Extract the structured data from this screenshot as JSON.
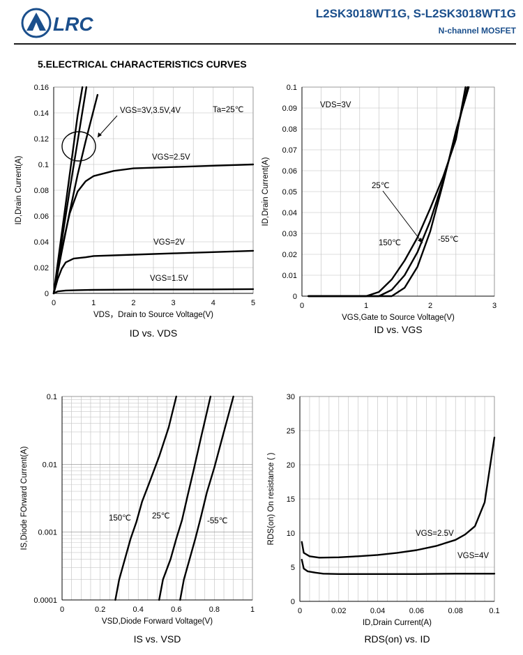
{
  "header": {
    "logo_text": "LRC",
    "title": "L2SK3018WT1G, S-L2SK3018WT1G",
    "subtitle": "N-channel MOSFET",
    "section": "5.ELECTRICAL CHARACTERISTICS CURVES"
  },
  "chart_data": [
    {
      "type": "line",
      "title": "ID vs. VDS",
      "xlabel": "VDS，Drain to Source Voltage(V)",
      "ylabel": "ID,Drain Current(A)",
      "xlim": [
        0,
        5
      ],
      "ylim": [
        0,
        0.16
      ],
      "xticks": [
        "0",
        "1",
        "2",
        "3",
        "4",
        "5"
      ],
      "yticks": [
        "0",
        "0.02",
        "0.04",
        "0.06",
        "0.08",
        "0.1",
        "0.12",
        "0.14",
        "0.16"
      ],
      "grid": true,
      "annotations": [
        "VGS=3V,3.5V,4V",
        "Ta=25℃",
        "VGS=2.5V",
        "VGS=2V",
        "VGS=1.5V"
      ],
      "series": [
        {
          "name": "VGS=4V",
          "x": [
            0,
            0.2,
            0.4,
            0.6,
            0.72
          ],
          "y": [
            0,
            0.046,
            0.092,
            0.138,
            0.16
          ]
        },
        {
          "name": "VGS=3.5V",
          "x": [
            0,
            0.2,
            0.4,
            0.6,
            0.82
          ],
          "y": [
            0,
            0.04,
            0.08,
            0.118,
            0.16
          ]
        },
        {
          "name": "VGS=3V",
          "x": [
            0,
            0.2,
            0.4,
            0.6,
            0.8,
            1.1
          ],
          "y": [
            0,
            0.032,
            0.063,
            0.092,
            0.118,
            0.154
          ]
        },
        {
          "name": "VGS=2.5V",
          "x": [
            0,
            0.2,
            0.4,
            0.6,
            0.8,
            1.0,
            1.5,
            2.0,
            3.0,
            4.0,
            5.0
          ],
          "y": [
            0,
            0.034,
            0.062,
            0.079,
            0.087,
            0.091,
            0.095,
            0.097,
            0.098,
            0.099,
            0.1
          ]
        },
        {
          "name": "VGS=2V",
          "x": [
            0,
            0.1,
            0.2,
            0.3,
            0.5,
            0.8,
            1.0,
            2.0,
            3.0,
            4.0,
            5.0
          ],
          "y": [
            0,
            0.011,
            0.019,
            0.024,
            0.027,
            0.028,
            0.029,
            0.03,
            0.031,
            0.032,
            0.033
          ]
        },
        {
          "name": "VGS=1.5V",
          "x": [
            0,
            0.1,
            0.3,
            0.6,
            1.0,
            2.0,
            3.0,
            4.0,
            5.0
          ],
          "y": [
            0,
            0.0015,
            0.0022,
            0.0025,
            0.0027,
            0.0029,
            0.003,
            0.0031,
            0.0033
          ]
        }
      ]
    },
    {
      "type": "line",
      "title": "ID vs. VGS",
      "xlabel": "VGS,Gate to Source Voltage(V)",
      "ylabel": "ID,Drain Current(A)",
      "xlim": [
        0,
        3
      ],
      "ylim": [
        0,
        0.1
      ],
      "xticks": [
        "0",
        "1",
        "2",
        "3"
      ],
      "yticks": [
        "0",
        "0.01",
        "0.02",
        "0.03",
        "0.04",
        "0.05",
        "0.06",
        "0.07",
        "0.08",
        "0.09",
        "0.1"
      ],
      "grid": true,
      "annotations": [
        "VDS=3V",
        "25℃",
        "150℃",
        "-55℃"
      ],
      "series": [
        {
          "name": "150℃",
          "x": [
            0.1,
            1.0,
            1.2,
            1.4,
            1.6,
            1.8,
            2.0,
            2.2,
            2.4,
            2.55
          ],
          "y": [
            0,
            0,
            0.002,
            0.008,
            0.017,
            0.028,
            0.042,
            0.057,
            0.075,
            0.1
          ]
        },
        {
          "name": "25℃",
          "x": [
            0.1,
            1.2,
            1.4,
            1.6,
            1.8,
            2.0,
            2.2,
            2.4,
            2.58
          ],
          "y": [
            0,
            0,
            0.003,
            0.01,
            0.021,
            0.036,
            0.055,
            0.077,
            0.1
          ]
        },
        {
          "name": "-55℃",
          "x": [
            0.1,
            1.4,
            1.6,
            1.8,
            2.0,
            2.2,
            2.4,
            2.6
          ],
          "y": [
            0,
            0,
            0.004,
            0.014,
            0.031,
            0.054,
            0.079,
            0.1
          ]
        }
      ]
    },
    {
      "type": "line",
      "title": "IS vs. VSD",
      "xlabel": "VSD,Diode Forward Voltage(V)",
      "ylabel": "IS,Diode FOrward Current(A)",
      "xlim": [
        0,
        1
      ],
      "ylim": [
        0.0001,
        0.1
      ],
      "yscale": "log",
      "xticks": [
        "0",
        "0.2",
        "0.4",
        "0.6",
        "0.8",
        "1"
      ],
      "yticks": [
        "0.0001",
        "0.001",
        "0.01",
        "0.1"
      ],
      "grid": true,
      "annotations": [
        "150℃",
        "25℃",
        "-55℃"
      ],
      "series": [
        {
          "name": "150℃",
          "x": [
            0.28,
            0.3,
            0.33,
            0.36,
            0.39,
            0.42,
            0.46,
            0.51,
            0.56,
            0.6
          ],
          "y": [
            0.0001,
            0.0002,
            0.0004,
            0.0008,
            0.0014,
            0.0028,
            0.0055,
            0.013,
            0.035,
            0.1
          ]
        },
        {
          "name": "25℃",
          "x": [
            0.51,
            0.53,
            0.57,
            0.6,
            0.63,
            0.66,
            0.69,
            0.73,
            0.78
          ],
          "y": [
            0.0001,
            0.0002,
            0.0004,
            0.0008,
            0.0015,
            0.0035,
            0.008,
            0.025,
            0.1
          ]
        },
        {
          "name": "-55℃",
          "x": [
            0.62,
            0.64,
            0.67,
            0.7,
            0.73,
            0.76,
            0.8,
            0.85,
            0.9
          ],
          "y": [
            0.0001,
            0.0002,
            0.0004,
            0.0008,
            0.0017,
            0.0038,
            0.009,
            0.03,
            0.1
          ]
        }
      ]
    },
    {
      "type": "line",
      "title": "RDS(on) vs. ID",
      "xlabel": "ID,Drain Current(A)",
      "ylabel": "RDS(on) On resistance (   )",
      "xlim": [
        0,
        0.1
      ],
      "ylim": [
        0,
        30
      ],
      "xticks": [
        "0",
        "0.02",
        "0.04",
        "0.06",
        "0.08",
        "0.1"
      ],
      "yticks": [
        "0",
        "5",
        "10",
        "15",
        "20",
        "25",
        "30"
      ],
      "grid": true,
      "annotations": [
        "VGS=2.5V",
        "VGS=4V"
      ],
      "series": [
        {
          "name": "VGS=2.5V",
          "x": [
            0.001,
            0.002,
            0.005,
            0.01,
            0.02,
            0.03,
            0.04,
            0.05,
            0.06,
            0.07,
            0.08,
            0.085,
            0.09,
            0.095,
            0.1
          ],
          "y": [
            8.7,
            7.1,
            6.6,
            6.4,
            6.45,
            6.6,
            6.8,
            7.1,
            7.5,
            8.1,
            9.0,
            9.8,
            11.0,
            14.5,
            24
          ]
        },
        {
          "name": "VGS=4V",
          "x": [
            0.001,
            0.002,
            0.004,
            0.008,
            0.012,
            0.02,
            0.04,
            0.06,
            0.08,
            0.1
          ],
          "y": [
            6.1,
            4.8,
            4.4,
            4.2,
            4.05,
            4.0,
            4.0,
            4.0,
            4.05,
            4.05
          ]
        }
      ]
    }
  ]
}
